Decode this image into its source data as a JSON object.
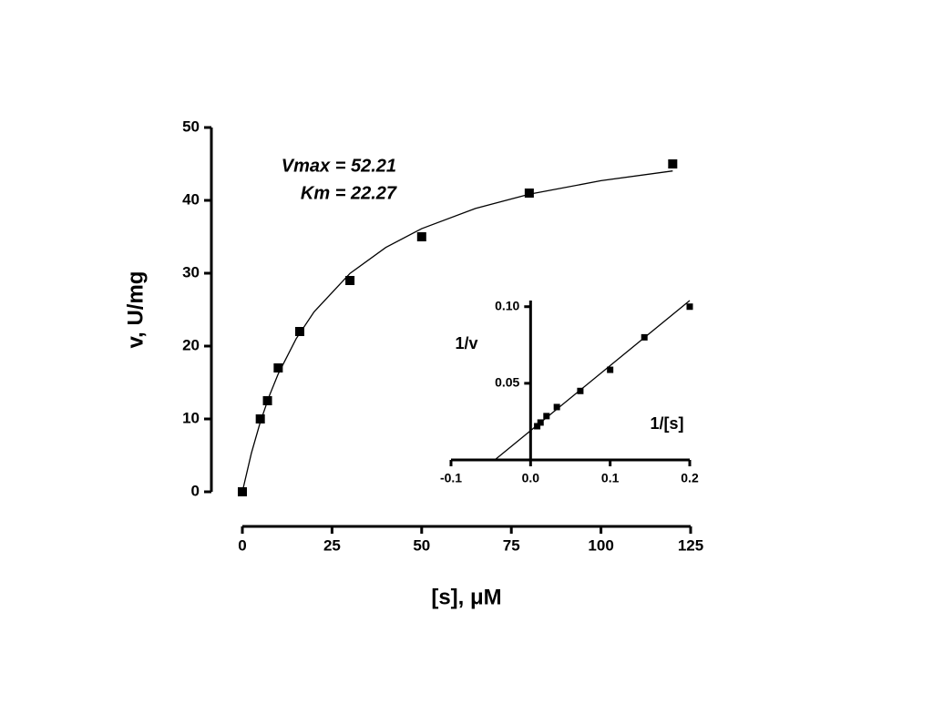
{
  "chart_data": [
    {
      "type": "scatter",
      "title": null,
      "x_label": "[s], μM",
      "y_label": "v, U/mg",
      "annotations": [
        "Vmax = 52.21",
        "Km = 22.27"
      ],
      "xlim": [
        0,
        125
      ],
      "xticks": [
        0,
        25,
        50,
        75,
        100,
        125
      ],
      "ylim": [
        0,
        50
      ],
      "yticks": [
        0,
        10,
        20,
        30,
        40,
        50
      ],
      "series": [
        {
          "mode": "markers",
          "color": "#000000",
          "x": [
            0,
            5,
            7,
            10,
            16,
            30,
            50,
            80,
            120
          ],
          "values": [
            0,
            10,
            12.5,
            17,
            22,
            29,
            35,
            41,
            45
          ]
        },
        {
          "mode": "line",
          "color": "#000000",
          "x": [
            0,
            2.5,
            5,
            7.5,
            10,
            15,
            20,
            30,
            40,
            50,
            65,
            80,
            100,
            120
          ],
          "values": [
            0,
            5.27,
            9.57,
            13.15,
            16.18,
            21.01,
            24.7,
            29.97,
            33.54,
            36.12,
            38.89,
            40.84,
            42.7,
            44.04
          ]
        }
      ]
    },
    {
      "type": "scatter",
      "x_label": "1/[s]",
      "y_label": "1/v",
      "xlim": [
        -0.1,
        0.2
      ],
      "xticks": [
        -0.1,
        {
          "value": 0,
          "label": "0.0"
        },
        0.1,
        0.2
      ],
      "ylim": [
        0,
        0.104
      ],
      "yticks": [
        0.05,
        {
          "value": 0.1,
          "label": "0.10"
        }
      ],
      "series": [
        {
          "mode": "markers",
          "color": "#000000",
          "x": [
            0.0083,
            0.0125,
            0.02,
            0.033,
            0.0625,
            0.1,
            0.143,
            0.2
          ],
          "values": [
            0.022,
            0.0244,
            0.0286,
            0.0345,
            0.045,
            0.0588,
            0.08,
            0.1
          ]
        },
        {
          "mode": "line",
          "color": "#000000",
          "x": [
            -0.045,
            0.2
          ],
          "values": [
            0,
            0.104
          ]
        }
      ]
    }
  ]
}
